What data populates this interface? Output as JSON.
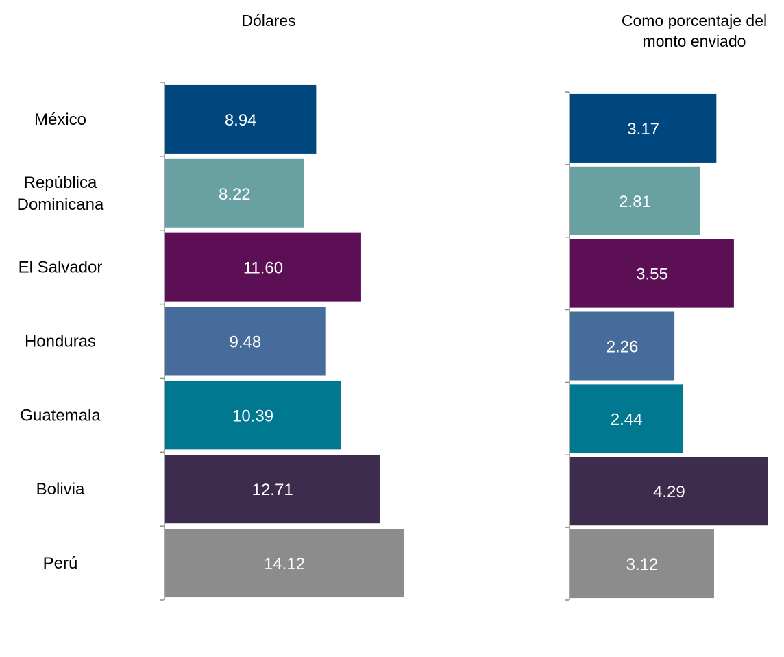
{
  "chart_data": [
    {
      "type": "bar",
      "orientation": "horizontal",
      "title": "Dólares",
      "categories": [
        "México",
        "República Dominicana",
        "El Salvador",
        "Honduras",
        "Guatemala",
        "Bolivia",
        "Perú"
      ],
      "values": [
        8.94,
        8.22,
        11.6,
        9.48,
        10.39,
        12.71,
        14.12
      ],
      "data_labels": [
        "8.94",
        "8.22",
        "11.60",
        "9.48",
        "10.39",
        "12.71",
        "14.12"
      ],
      "xlim": [
        0,
        15
      ],
      "grid": false,
      "legend": "none"
    },
    {
      "type": "bar",
      "orientation": "horizontal",
      "title": "Como porcentaje del monto enviado",
      "categories": [
        "México",
        "República Dominicana",
        "El Salvador",
        "Honduras",
        "Guatemala",
        "Bolivia",
        "Perú"
      ],
      "values": [
        3.17,
        2.81,
        3.55,
        2.26,
        2.44,
        4.29,
        3.12
      ],
      "data_labels": [
        "3.17",
        "2.81",
        "3.55",
        "2.26",
        "2.44",
        "4.29",
        "3.12"
      ],
      "xlim": [
        0,
        4.35
      ],
      "grid": false,
      "legend": "none"
    }
  ],
  "category_labels": [
    [
      "México"
    ],
    [
      "República",
      "Dominicana"
    ],
    [
      "El Salvador"
    ],
    [
      "Honduras"
    ],
    [
      "Guatemala"
    ],
    [
      "Bolivia"
    ],
    [
      "Perú"
    ]
  ],
  "titles": {
    "left": [
      "Dólares"
    ],
    "right": [
      "Como porcentaje del",
      "monto enviado"
    ]
  },
  "colors": [
    "#00477f",
    "#69a0a2",
    "#5c0f55",
    "#456c9a",
    "#007890",
    "#3d2c4e",
    "#8c8c8c"
  ]
}
